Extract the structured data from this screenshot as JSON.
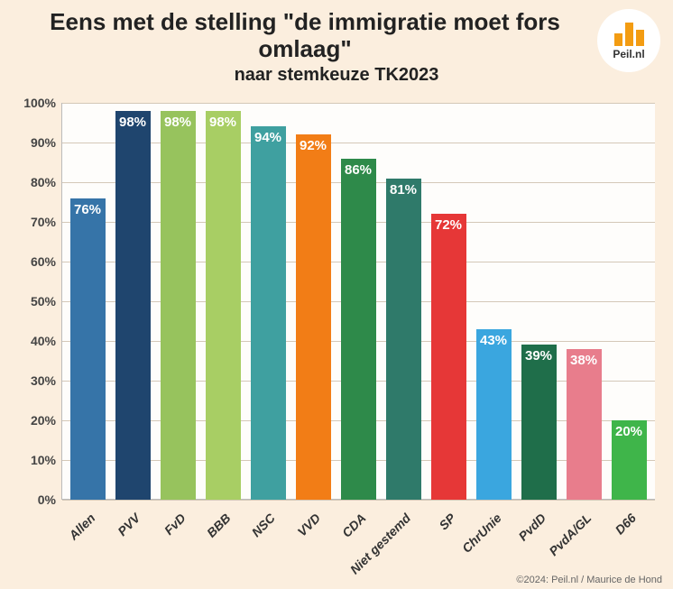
{
  "title": "Eens met de stelling \"de immigratie moet fors omlaag\"",
  "subtitle": "naar stemkeuze TK2023",
  "logo_text": "Peil.nl",
  "credit": "©2024: Peil.nl / Maurice de Hond",
  "chart": {
    "type": "bar",
    "ylim": [
      0,
      100
    ],
    "ytick_step": 10,
    "y_suffix": "%",
    "background_color": "#fefdfb",
    "grid_color": "#d4c8b8",
    "page_background": "#fbeede",
    "title_fontsize": 26,
    "subtitle_fontsize": 20,
    "value_label_color": "#ffffff",
    "value_label_fontsize": 15,
    "axis_label_fontsize": 14,
    "bar_width": 0.78,
    "categories": [
      "Allen",
      "PVV",
      "FvD",
      "BBB",
      "NSC",
      "VVD",
      "CDA",
      "Niet gestemd",
      "SP",
      "ChrUnie",
      "PvdD",
      "PvdA/GL",
      "D66"
    ],
    "values": [
      76,
      98,
      98,
      98,
      94,
      92,
      86,
      81,
      72,
      43,
      39,
      38,
      20
    ],
    "bar_colors": [
      "#3674a8",
      "#1f456e",
      "#97c35d",
      "#a8ce64",
      "#3fa0a0",
      "#f27d16",
      "#2e8a4a",
      "#2f7a6a",
      "#e63737",
      "#3aa6df",
      "#1f6e4a",
      "#e87d8c",
      "#3fb54a"
    ]
  }
}
